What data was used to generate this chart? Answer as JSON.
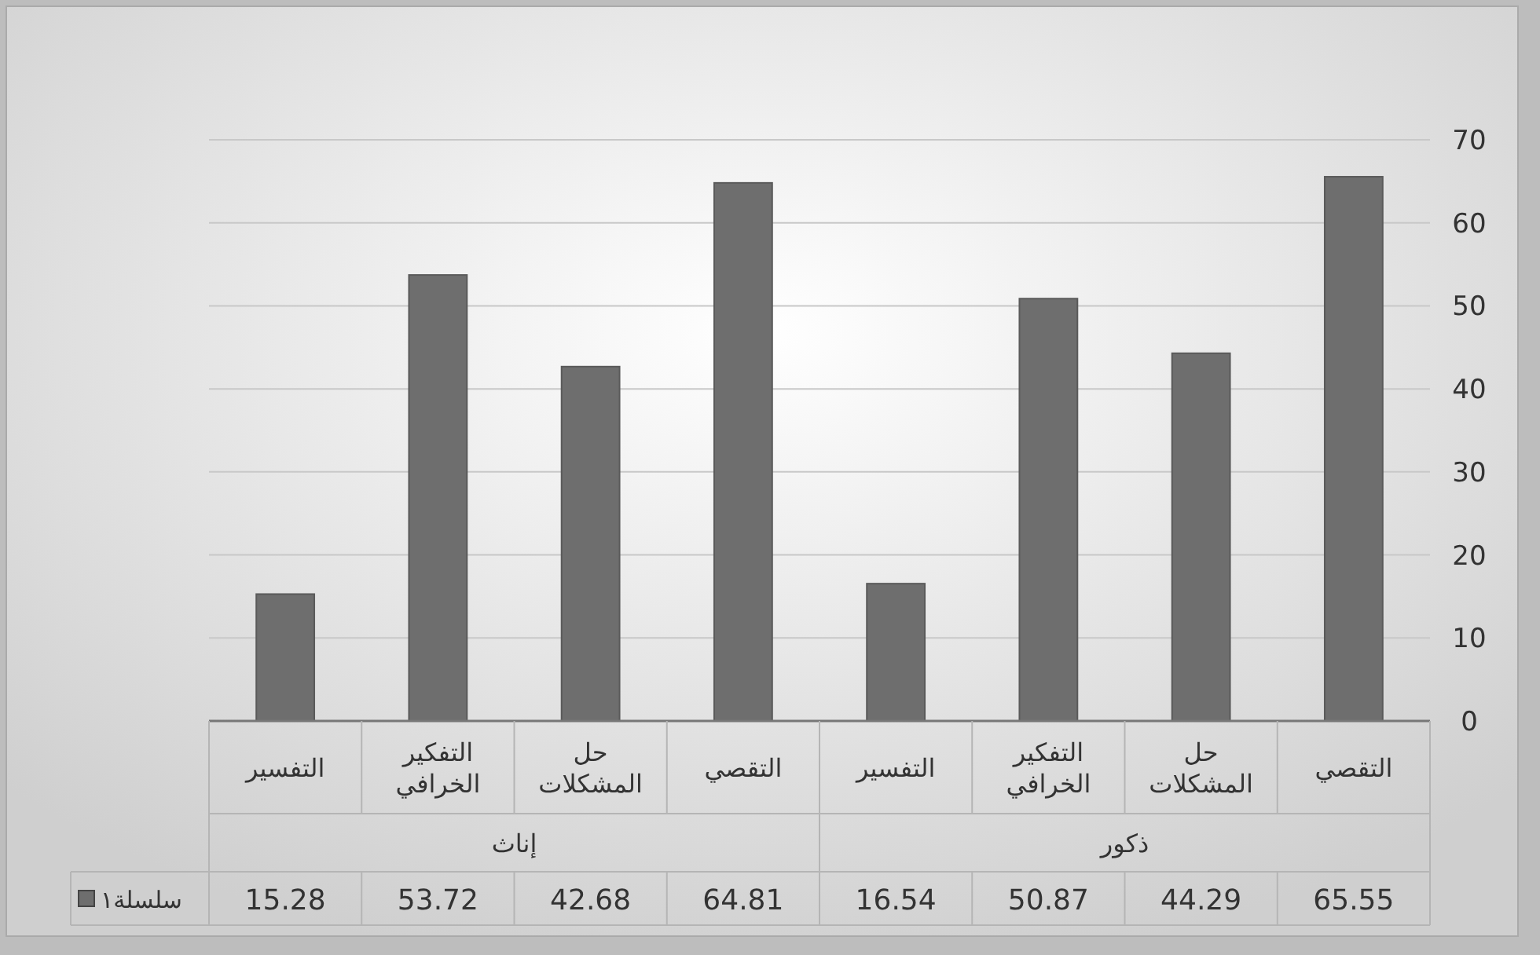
{
  "chart_data": {
    "type": "bar",
    "categories": [
      "التفسير",
      "التفكير الخرافي",
      "حل المشكلات",
      "التقصي",
      "التفسير",
      "التفكير الخرافي",
      "حل المشكلات",
      "التقصي"
    ],
    "series": [
      {
        "name": "سلسلة١",
        "color": "#6e6e6e",
        "values": [
          15.28,
          53.72,
          42.68,
          64.81,
          16.54,
          50.87,
          44.29,
          65.55
        ]
      }
    ],
    "annotations": [
      "إناث",
      "ذكور"
    ],
    "ylim": [
      0,
      70
    ],
    "yticks": [
      0,
      10,
      20,
      30,
      40,
      50,
      60,
      70
    ],
    "grid": "y",
    "data_labels": true,
    "legend": "bottom left"
  }
}
